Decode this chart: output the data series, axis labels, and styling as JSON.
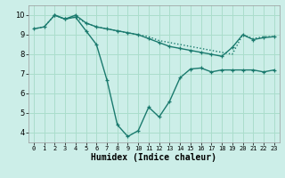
{
  "xlabel": "Humidex (Indice chaleur)",
  "background_color": "#cceee8",
  "grid_color": "#aaddcc",
  "line_color": "#1a7a6e",
  "xlim": [
    -0.5,
    23.5
  ],
  "ylim": [
    3.5,
    10.5
  ],
  "yticks": [
    4,
    5,
    6,
    7,
    8,
    9,
    10
  ],
  "xticks": [
    0,
    1,
    2,
    3,
    4,
    5,
    6,
    7,
    8,
    9,
    10,
    11,
    12,
    13,
    14,
    15,
    16,
    17,
    18,
    19,
    20,
    21,
    22,
    23
  ],
  "series": [
    {
      "x": [
        0,
        1,
        2,
        3,
        4,
        5,
        6,
        7,
        8,
        9,
        10,
        11,
        12,
        13,
        14,
        15,
        16,
        17,
        18,
        19,
        20,
        21,
        22,
        23
      ],
      "y": [
        9.3,
        9.4,
        10.0,
        9.8,
        9.9,
        9.6,
        9.4,
        9.3,
        9.2,
        9.1,
        9.0,
        8.9,
        8.7,
        8.6,
        8.5,
        8.4,
        8.3,
        8.2,
        8.1,
        8.0,
        9.0,
        8.8,
        8.9,
        8.9
      ],
      "style": "dotted",
      "marker": false,
      "linewidth": 1.0
    },
    {
      "x": [
        0,
        1,
        2,
        3,
        4,
        5,
        6,
        7,
        8,
        9,
        10,
        11,
        12,
        13,
        14,
        15,
        16,
        17,
        18,
        19,
        20,
        21,
        22,
        23
      ],
      "y": [
        9.3,
        9.4,
        10.0,
        9.8,
        10.0,
        9.6,
        9.4,
        9.3,
        9.2,
        9.1,
        9.0,
        8.8,
        8.6,
        8.4,
        8.3,
        8.2,
        8.1,
        8.0,
        7.9,
        8.35,
        9.0,
        8.75,
        8.85,
        8.9
      ],
      "style": "solid",
      "marker": true,
      "linewidth": 1.0
    },
    {
      "x": [
        2,
        3,
        4,
        5,
        6,
        7,
        8,
        9,
        10,
        11,
        12,
        13,
        14,
        15,
        16,
        17,
        18,
        19,
        20,
        21,
        22,
        23
      ],
      "y": [
        10.0,
        9.8,
        9.9,
        9.2,
        8.5,
        6.7,
        4.4,
        3.8,
        4.1,
        5.3,
        4.8,
        5.6,
        6.8,
        7.25,
        7.3,
        7.1,
        7.2,
        7.2,
        7.2,
        7.2,
        7.1,
        7.2
      ],
      "style": "solid",
      "marker": true,
      "linewidth": 1.0
    }
  ]
}
